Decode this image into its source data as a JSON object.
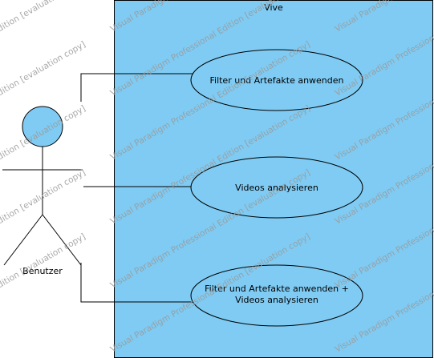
{
  "system": {
    "name": "Vive",
    "fill": "#7FCBF3",
    "stroke": "#000000"
  },
  "actor": {
    "name": "Benutzer",
    "head_fill": "#7FCBF3"
  },
  "use_cases": [
    {
      "id": "uc1",
      "lines": [
        "Filter und Artefakte anwenden"
      ]
    },
    {
      "id": "uc2",
      "lines": [
        "Videos analysieren"
      ]
    },
    {
      "id": "uc3",
      "lines": [
        "Filter und Artefakte anwenden +",
        "Videos analysieren"
      ]
    }
  ],
  "watermark": {
    "text": "Visual Paradigm Professional Edition [evaluation copy]"
  }
}
